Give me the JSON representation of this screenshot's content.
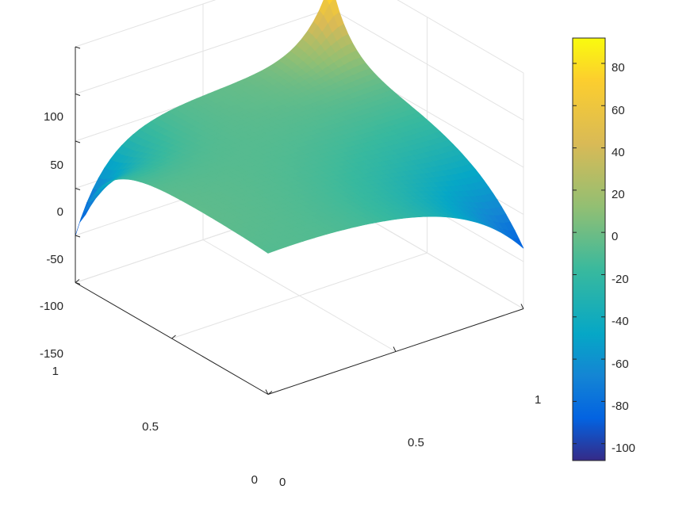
{
  "chart_data": {
    "type": "surface",
    "title": "",
    "xlabel": "",
    "ylabel": "",
    "zlabel": "",
    "grid": true,
    "x_ticks": [
      "0",
      "0.5",
      "1"
    ],
    "y_ticks": [
      "0",
      "0.5",
      "1"
    ],
    "z_ticks": [
      "100",
      "50",
      "0",
      "-50",
      "-100",
      "-150"
    ],
    "xlim": [
      0,
      1
    ],
    "ylim": [
      0,
      1
    ],
    "zlim": [
      -150,
      100
    ],
    "corner_values": {
      "x0_y0": 5,
      "x1_y0": -90,
      "x0_y1": -110,
      "x1_y1": 92
    },
    "surface_range": [
      -110,
      92
    ],
    "colormap": "parula",
    "colorbar": {
      "placement": "right",
      "ticks": [
        "80",
        "60",
        "40",
        "20",
        "0",
        "-20",
        "-40",
        "-60",
        "-80",
        "-100"
      ],
      "limits": [
        -108,
        92
      ]
    }
  }
}
